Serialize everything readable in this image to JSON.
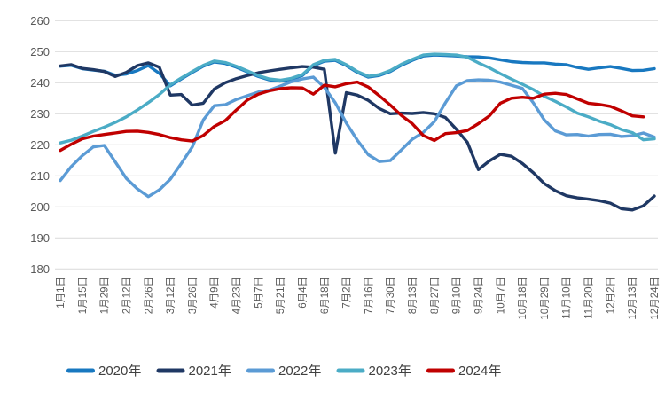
{
  "chart_data": {
    "type": "line",
    "title": "",
    "legend_position": "bottom",
    "grid": true,
    "gridline_color": "#d9d9d9",
    "axis_text_color": "#595959",
    "legend_text_color": "#404040",
    "y_axis": {
      "min": 180,
      "max": 260,
      "step": 10
    },
    "y_tick_labels": [
      "260",
      "250",
      "240",
      "230",
      "220",
      "210",
      "200",
      "190",
      "180"
    ],
    "x_tick_labels": [
      "1月1日",
      "1月15日",
      "1月29日",
      "2月12日",
      "2月26日",
      "3月12日",
      "3月26日",
      "4月9日",
      "4月23日",
      "5月7日",
      "5月21日",
      "6月4日",
      "6月18日",
      "7月2日",
      "7月16日",
      "7月30日",
      "8月13日",
      "8月27日",
      "9月10日",
      "9月24日",
      "10月7日",
      "10月18日",
      "10月29日",
      "11月10日",
      "11月20日",
      "12月2日",
      "12月13日",
      "12月24日"
    ],
    "points_per_series": 55,
    "series": [
      {
        "name": "2020年",
        "color": "#1878C0",
        "values": [
          245.3,
          245.6,
          244.5,
          244.1,
          243.7,
          242.4,
          242.8,
          243.9,
          245.5,
          243.0,
          239.0,
          241.2,
          243.3,
          245.3,
          246.7,
          246.2,
          245.0,
          243.5,
          242.0,
          240.9,
          240.5,
          241.1,
          242.3,
          245.5,
          246.9,
          247.2,
          245.5,
          243.3,
          241.8,
          242.3,
          243.6,
          245.6,
          247.2,
          248.6,
          248.9,
          248.8,
          248.6,
          248.4,
          248.3,
          248.0,
          247.4,
          246.8,
          246.5,
          246.4,
          246.4,
          246.0,
          245.8,
          244.9,
          244.3,
          244.8,
          245.2,
          244.6,
          243.9,
          244.0,
          244.5
        ]
      },
      {
        "name": "2021年",
        "color": "#1F3864",
        "values": [
          245.4,
          245.8,
          244.6,
          244.2,
          243.6,
          242.0,
          243.3,
          245.5,
          246.4,
          245.0,
          236.0,
          236.2,
          232.8,
          233.4,
          238.0,
          240.0,
          241.3,
          242.3,
          243.2,
          243.8,
          244.3,
          244.8,
          245.2,
          245.0,
          244.3,
          217.3,
          236.8,
          236.0,
          234.3,
          231.7,
          230.0,
          230.2,
          230.1,
          230.4,
          230.0,
          228.8,
          225.0,
          220.8,
          212.0,
          214.8,
          216.9,
          216.3,
          214.0,
          211.0,
          207.5,
          205.2,
          203.6,
          202.9,
          202.5,
          202.0,
          201.2,
          199.4,
          199.0,
          200.3,
          203.5
        ]
      },
      {
        "name": "2022年",
        "color": "#5B9BD5",
        "values": [
          208.5,
          213.0,
          216.5,
          219.3,
          219.8,
          214.5,
          209.2,
          205.8,
          203.3,
          205.5,
          208.9,
          214.0,
          219.3,
          228.0,
          232.6,
          232.9,
          234.6,
          235.8,
          237.0,
          237.6,
          238.9,
          240.3,
          241.2,
          241.8,
          238.5,
          233.5,
          227.0,
          221.5,
          216.8,
          214.6,
          214.9,
          218.3,
          221.8,
          224.0,
          227.5,
          233.5,
          239.0,
          240.7,
          240.9,
          240.8,
          240.2,
          239.2,
          238.2,
          233.5,
          228.0,
          224.5,
          223.2,
          223.3,
          222.8,
          223.3,
          223.4,
          222.7,
          222.9,
          223.8,
          222.5
        ]
      },
      {
        "name": "2023年",
        "color": "#4BACC6",
        "values": [
          220.6,
          221.5,
          222.8,
          224.3,
          225.7,
          227.2,
          229.0,
          231.2,
          233.6,
          236.2,
          239.3,
          241.5,
          243.6,
          245.6,
          247.0,
          246.5,
          245.3,
          243.8,
          242.3,
          241.2,
          240.8,
          241.4,
          242.6,
          245.8,
          247.2,
          247.5,
          245.8,
          243.6,
          242.1,
          242.6,
          243.9,
          245.9,
          247.5,
          248.9,
          249.2,
          249.1,
          248.9,
          248.2,
          246.4,
          244.8,
          242.9,
          241.2,
          239.5,
          237.8,
          235.6,
          234.0,
          232.2,
          230.2,
          229.0,
          227.6,
          226.5,
          224.9,
          223.9,
          221.6,
          221.9
        ]
      },
      {
        "name": "2024年",
        "color": "#C00000",
        "values": [
          218.2,
          220.2,
          221.9,
          222.8,
          223.3,
          223.8,
          224.3,
          224.4,
          224.0,
          223.3,
          222.3,
          221.6,
          221.2,
          223.0,
          225.9,
          227.8,
          231.2,
          234.4,
          236.3,
          237.4,
          238.1,
          238.4,
          238.3,
          236.3,
          239.2,
          238.7,
          239.7,
          240.2,
          238.6,
          235.8,
          232.8,
          229.5,
          226.8,
          223.0,
          221.4,
          223.6,
          223.9,
          224.6,
          226.8,
          229.3,
          233.4,
          235.0,
          235.3,
          235.0,
          236.3,
          236.6,
          236.2,
          234.8,
          233.4,
          233.0,
          232.4,
          230.9,
          229.3,
          229.0,
          null
        ]
      }
    ]
  }
}
